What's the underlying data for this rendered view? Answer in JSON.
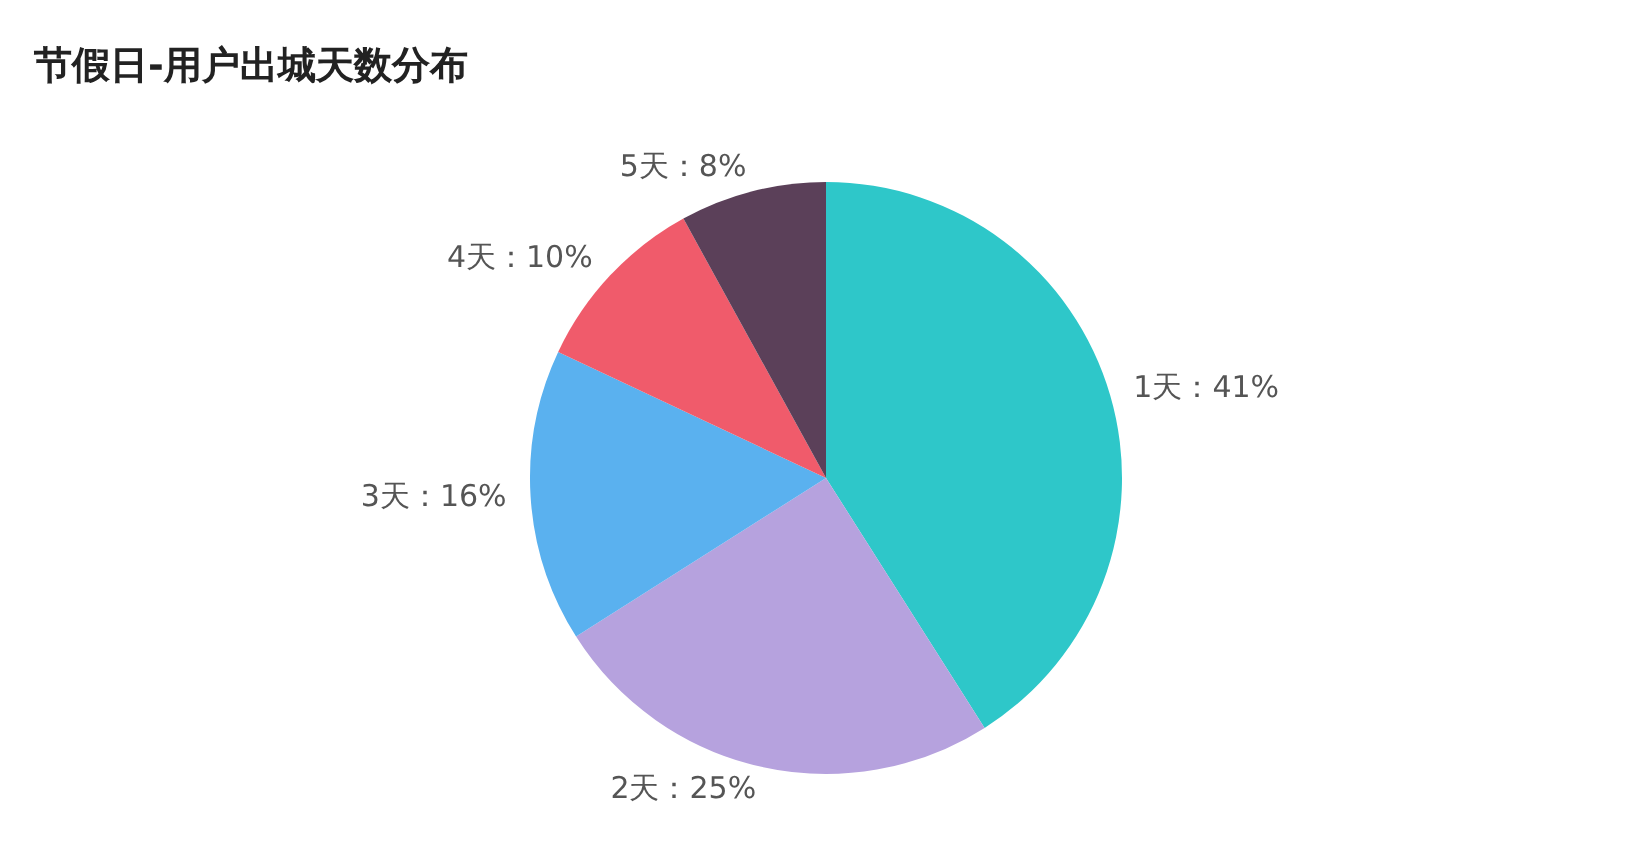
{
  "chart_data": {
    "type": "pie",
    "title": "节假日-用户出城天数分布",
    "categories": [
      "1天",
      "2天",
      "3天",
      "4天",
      "5天"
    ],
    "values": [
      41,
      25,
      16,
      10,
      8
    ],
    "colors": [
      "#2ec7c9",
      "#b6a2de",
      "#5ab1ef",
      "#f05b6b",
      "#5b4059"
    ],
    "value_labels": [
      "41%",
      "25%",
      "16%",
      "10%",
      "8%"
    ],
    "legend": false
  }
}
